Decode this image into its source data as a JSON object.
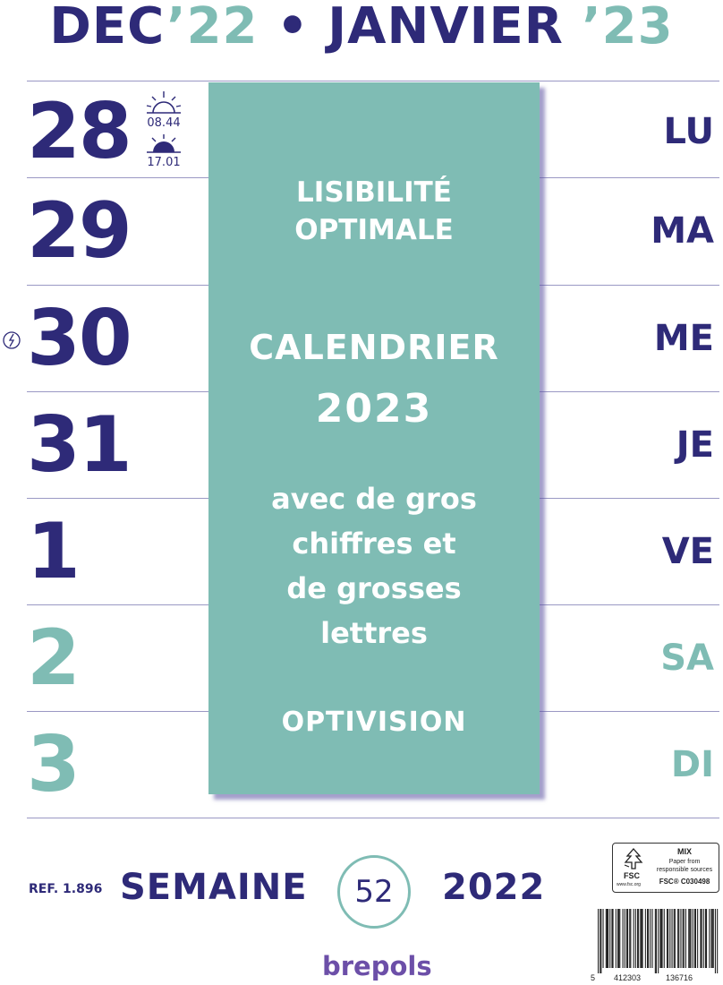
{
  "header": {
    "month1": "DEC",
    "year1": "’22",
    "separator": "•",
    "month2": "JANVIER",
    "year2": "’23"
  },
  "days": [
    {
      "num": "28",
      "abbr": "LU",
      "weekend": false
    },
    {
      "num": "29",
      "abbr": "MA",
      "weekend": false
    },
    {
      "num": "30",
      "abbr": "ME",
      "weekend": false
    },
    {
      "num": "31",
      "abbr": "JE",
      "weekend": false
    },
    {
      "num": "1",
      "abbr": "VE",
      "weekend": false
    },
    {
      "num": "2",
      "abbr": "SA",
      "weekend": true
    },
    {
      "num": "3",
      "abbr": "DI",
      "weekend": true
    }
  ],
  "sun": {
    "sunrise": "08.44",
    "sunset": "17.01",
    "sunrise_icon": "sunrise-icon",
    "sunset_icon": "sunset-icon"
  },
  "moon_icon": "moon-phase-icon",
  "panel": {
    "line1": "LISIBILITÉ",
    "line2": "OPTIMALE",
    "line3": "CALENDRIER",
    "line4": "2023",
    "line5": "avec de gros",
    "line6": "chiffres et",
    "line7": "de grosses",
    "line8": "lettres",
    "line9": "OPTIVISION"
  },
  "footer": {
    "ref": "REF. 1.896",
    "semaine_label": "SEMAINE",
    "week_number": "52",
    "year": "2022",
    "brand": "brepols"
  },
  "fsc": {
    "mix": "MIX",
    "paper_line1": "Paper from",
    "paper_line2": "responsible sources",
    "brand": "FSC",
    "url": "www.fsc.org",
    "code": "FSC® C030498"
  },
  "barcode": {
    "digit_first": "5",
    "digits_left": "412303",
    "digits_right": "136716"
  },
  "colors": {
    "navy": "#2e2a78",
    "teal": "#7fbcb4",
    "brand_purple": "#6c4fa8"
  }
}
